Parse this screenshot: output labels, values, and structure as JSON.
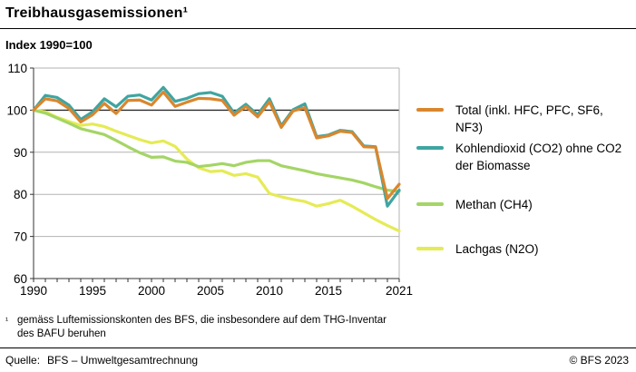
{
  "header": {
    "title": "Treibhausgasemissionen¹",
    "subtitle": "Index 1990=100"
  },
  "chart_data": {
    "type": "line",
    "title": "Treibhausgasemissionen, Index 1990=100",
    "x": [
      1990,
      1991,
      1992,
      1993,
      1994,
      1995,
      1996,
      1997,
      1998,
      1999,
      2000,
      2001,
      2002,
      2003,
      2004,
      2005,
      2006,
      2007,
      2008,
      2009,
      2010,
      2011,
      2012,
      2013,
      2014,
      2015,
      2016,
      2017,
      2018,
      2019,
      2020,
      2021
    ],
    "x_tick_labels": [
      1990,
      1995,
      2000,
      2005,
      2010,
      2015,
      2021
    ],
    "ylim": [
      60,
      110
    ],
    "y_ticks": [
      60,
      70,
      80,
      90,
      100,
      110
    ],
    "reference_line": 100,
    "grid": true,
    "legend_position": "right",
    "series": [
      {
        "name": "Total (inkl. HFC, PFC, SF6, NF3)",
        "color": "#D9872E",
        "values": [
          100,
          102.7,
          102.2,
          100.4,
          97.2,
          98.9,
          101.6,
          99.2,
          102.3,
          102.4,
          101.2,
          104.3,
          100.9,
          101.9,
          102.8,
          102.7,
          102.3,
          98.8,
          100.9,
          98.4,
          102.0,
          95.9,
          99.8,
          100.6,
          93.4,
          93.9,
          95.0,
          94.7,
          91.3,
          91.2,
          79.0,
          82.4
        ]
      },
      {
        "name": "Kohlendioxid (CO2) ohne CO2 der Biomasse",
        "color": "#3FA5A1",
        "values": [
          100,
          103.5,
          103.0,
          101.2,
          97.8,
          99.6,
          102.7,
          100.8,
          103.3,
          103.6,
          102.4,
          105.4,
          102.1,
          102.8,
          103.9,
          104.2,
          103.3,
          99.3,
          101.4,
          98.9,
          102.7,
          96.3,
          100.1,
          101.5,
          93.7,
          94.1,
          95.2,
          94.9,
          91.5,
          91.3,
          77.2,
          81.0
        ]
      },
      {
        "name": "Methan (CH4)",
        "color": "#A4D565",
        "values": [
          100,
          99.3,
          98.1,
          96.9,
          95.6,
          94.9,
          94.2,
          92.8,
          91.3,
          89.9,
          88.8,
          88.9,
          87.9,
          87.6,
          86.6,
          86.9,
          87.3,
          86.8,
          87.6,
          88.0,
          88.0,
          86.8,
          86.2,
          85.6,
          84.9,
          84.4,
          83.9,
          83.4,
          82.7,
          81.8,
          81.0,
          80.7
        ]
      },
      {
        "name": "Lachgas (N2O)",
        "color": "#E5EB55",
        "values": [
          100,
          99.6,
          98.3,
          97.3,
          96.4,
          96.7,
          96.1,
          95.0,
          94.0,
          93.0,
          92.2,
          92.7,
          91.4,
          88.4,
          86.3,
          85.4,
          85.6,
          84.5,
          84.9,
          84.1,
          80.2,
          79.4,
          78.8,
          78.3,
          77.2,
          77.8,
          78.6,
          77.2,
          75.6,
          74.0,
          72.6,
          71.3
        ]
      }
    ]
  },
  "footnote": {
    "marker": "¹",
    "lines": [
      "gemäss Luftemissionskonten des BFS, die insbesondere auf dem THG-Inventar",
      "des BAFU beruhen"
    ]
  },
  "footer": {
    "source_label": "Quelle:",
    "source_value": "BFS – Umweltgesamtrechnung",
    "copyright": "© BFS 2023"
  }
}
